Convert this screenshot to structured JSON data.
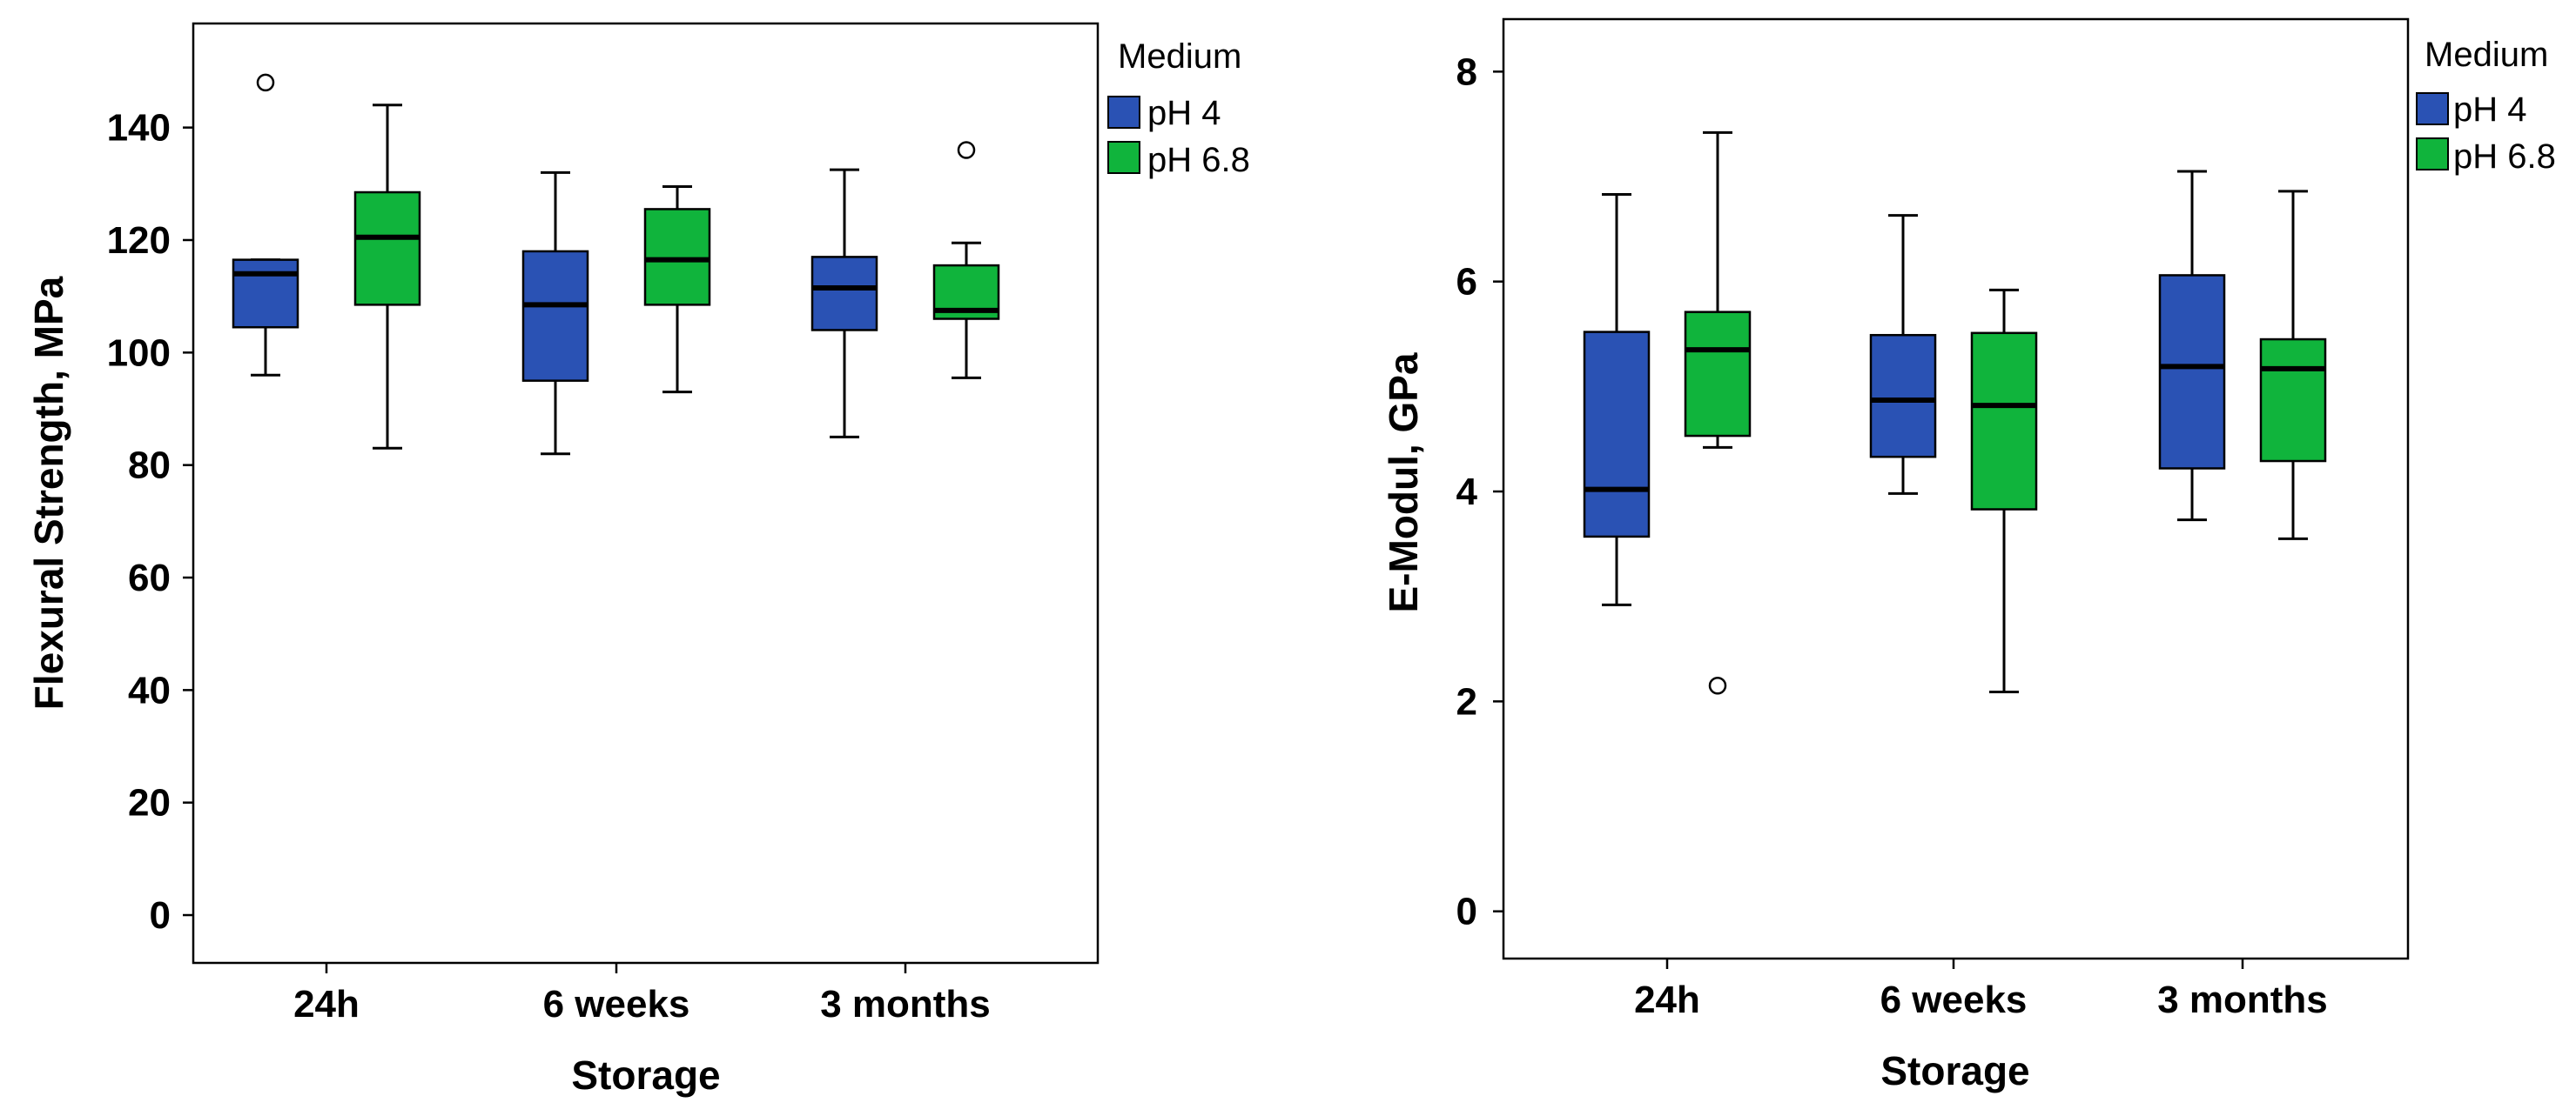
{
  "colors": {
    "pH 4": "#2a52b4",
    "pH 6.8": "#10b43c"
  },
  "chart_data": [
    {
      "type": "boxplot",
      "xlabel": "Storage",
      "ylabel": "Flexural Strength, MPa",
      "ylim": [
        -8.5,
        158.5
      ],
      "yticks": [
        0,
        20,
        40,
        60,
        80,
        100,
        120,
        140
      ],
      "categories": [
        "24h",
        "6 weeks",
        "3 months"
      ],
      "legend": {
        "title": "Medium",
        "entries": [
          "pH 4",
          "pH 6.8"
        ],
        "placement": "top-right outside"
      },
      "series": [
        {
          "name": "pH 4",
          "boxes": [
            {
              "category": "24h",
              "min": 96,
              "q1": 104.5,
              "median": 114,
              "q3": 116.5,
              "max": 116.5,
              "outliers": [
                148
              ]
            },
            {
              "category": "6 weeks",
              "min": 82,
              "q1": 95,
              "median": 108.5,
              "q3": 118,
              "max": 132,
              "outliers": []
            },
            {
              "category": "3 months",
              "min": 85,
              "q1": 104,
              "median": 111.5,
              "q3": 117,
              "max": 132.5,
              "outliers": []
            }
          ]
        },
        {
          "name": "pH 6.8",
          "boxes": [
            {
              "category": "24h",
              "min": 83,
              "q1": 108.5,
              "median": 120.5,
              "q3": 128.5,
              "max": 144,
              "outliers": []
            },
            {
              "category": "6 weeks",
              "min": 93,
              "q1": 108.5,
              "median": 116.5,
              "q3": 125.5,
              "max": 129.5,
              "outliers": []
            },
            {
              "category": "3 months",
              "min": 95.5,
              "q1": 106,
              "median": 107.5,
              "q3": 115.5,
              "max": 119.5,
              "outliers": [
                136
              ]
            }
          ]
        }
      ]
    },
    {
      "type": "boxplot",
      "xlabel": "Storage",
      "ylabel": "E-Modul, GPa",
      "ylim": [
        -0.45,
        8.5
      ],
      "yticks": [
        0,
        2,
        4,
        6,
        8
      ],
      "categories": [
        "24h",
        "6 weeks",
        "3 months"
      ],
      "legend": {
        "title": "Medium",
        "entries": [
          "pH 4",
          "pH 6.8"
        ],
        "placement": "top-right outside"
      },
      "series": [
        {
          "name": "pH 4",
          "boxes": [
            {
              "category": "24h",
              "min": 2.92,
              "q1": 3.57,
              "median": 4.02,
              "q3": 5.52,
              "max": 6.83,
              "outliers": []
            },
            {
              "category": "6 weeks",
              "min": 3.98,
              "q1": 4.33,
              "median": 4.87,
              "q3": 5.49,
              "max": 6.63,
              "outliers": []
            },
            {
              "category": "3 months",
              "min": 3.73,
              "q1": 4.22,
              "median": 5.19,
              "q3": 6.06,
              "max": 7.05,
              "outliers": []
            }
          ]
        },
        {
          "name": "pH 6.8",
          "boxes": [
            {
              "category": "24h",
              "min": 4.42,
              "q1": 4.53,
              "median": 5.35,
              "q3": 5.71,
              "max": 7.42,
              "outliers": [
                2.15
              ]
            },
            {
              "category": "6 weeks",
              "min": 2.09,
              "q1": 3.83,
              "median": 4.82,
              "q3": 5.51,
              "max": 5.92,
              "outliers": []
            },
            {
              "category": "3 months",
              "min": 3.55,
              "q1": 4.29,
              "median": 5.17,
              "q3": 5.45,
              "max": 6.86,
              "outliers": []
            }
          ]
        }
      ]
    }
  ]
}
